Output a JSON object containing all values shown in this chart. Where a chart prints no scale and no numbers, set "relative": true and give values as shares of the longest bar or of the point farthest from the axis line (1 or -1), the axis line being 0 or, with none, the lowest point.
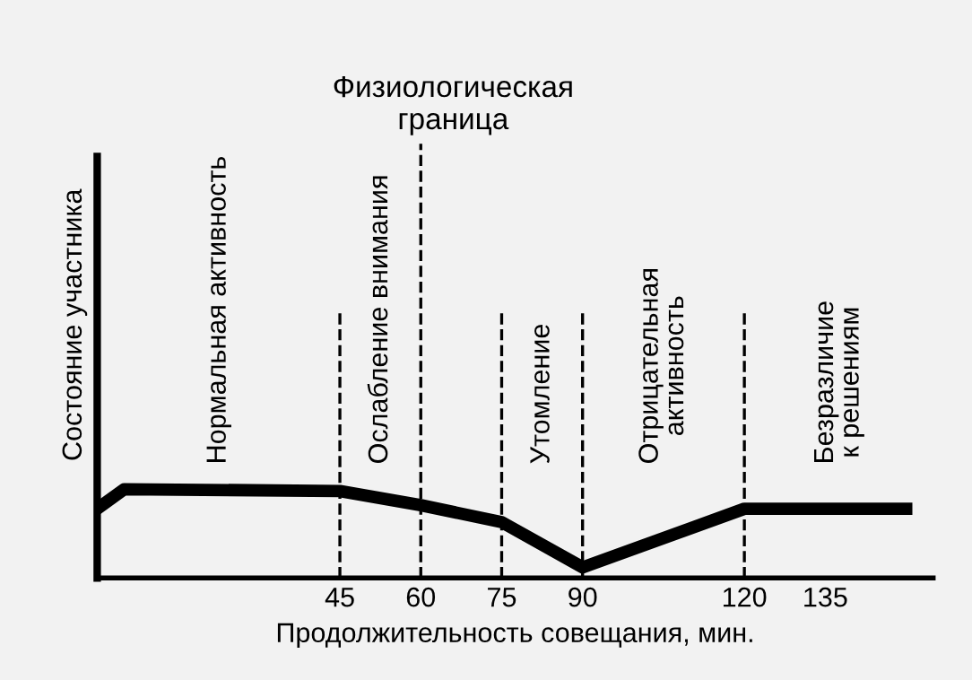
{
  "chart_data": {
    "type": "line",
    "relative": true,
    "xlabel": "Продолжительность совещания, мин.",
    "ylabel": "Состояние участника",
    "x": [
      0,
      5,
      45,
      60,
      75,
      90,
      120,
      150
    ],
    "series": [
      {
        "color": "#000000",
        "values": [
          0.78,
          1,
          0.98,
          0.82,
          0.63,
          0.12,
          0.78,
          0.78
        ]
      }
    ],
    "xlim": [
      0,
      155
    ],
    "xticks": [
      45,
      60,
      75,
      90,
      120,
      135
    ],
    "tick_labels": "x",
    "grid": false,
    "legend": false,
    "line_style": "solid",
    "ref_lines": [
      {
        "axis": "x",
        "value": 45,
        "line_style": "dashed",
        "color": "#000000"
      },
      {
        "axis": "x",
        "value": 60,
        "line_style": "dashed",
        "color": "#000000",
        "label": "Физиологическая граница"
      },
      {
        "axis": "x",
        "value": 75,
        "line_style": "dashed",
        "color": "#000000"
      },
      {
        "axis": "x",
        "value": 90,
        "line_style": "dashed",
        "color": "#000000"
      },
      {
        "axis": "x",
        "value": 120,
        "line_style": "dashed",
        "color": "#000000"
      }
    ],
    "annotations": [
      "Нормальная активность",
      "Ослабление внимания",
      "Утомление",
      "Отрицательная\nактивность",
      "Безразличие\nк решениям"
    ]
  }
}
